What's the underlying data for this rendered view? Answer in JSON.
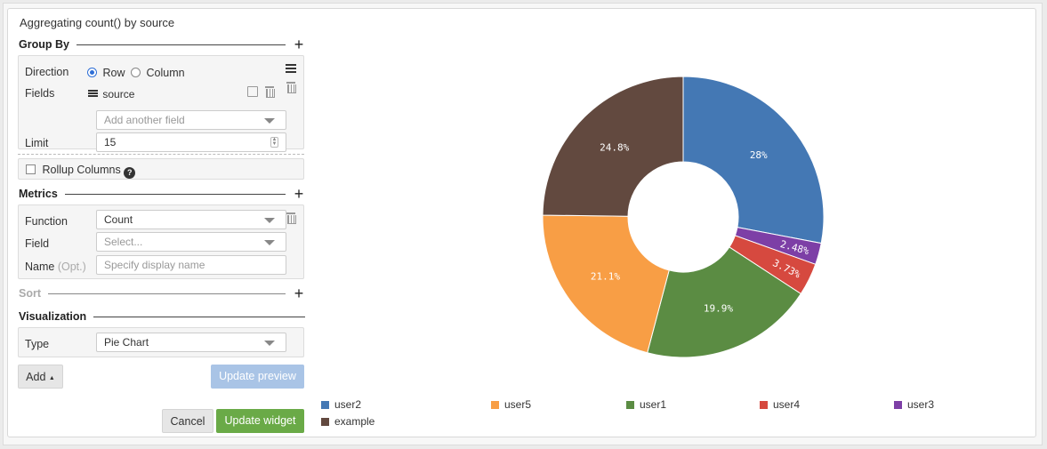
{
  "title": "Aggregating count() by source",
  "group_by": {
    "label": "Group By",
    "direction_label": "Direction",
    "direction_options": [
      "Row",
      "Column"
    ],
    "direction_selected": "Row",
    "fields_label": "Fields",
    "field_value": "source",
    "add_field_placeholder": "Add another field",
    "limit_label": "Limit",
    "limit_value": "15"
  },
  "rollup": {
    "label": "Rollup Columns",
    "help": "?"
  },
  "metrics": {
    "label": "Metrics",
    "function_label": "Function",
    "function_value": "Count",
    "field_label": "Field",
    "field_placeholder": "Select...",
    "name_label": "Name",
    "name_opt": "(Opt.)",
    "name_placeholder": "Specify display name"
  },
  "sort": {
    "label": "Sort"
  },
  "visualization": {
    "label": "Visualization",
    "type_label": "Type",
    "type_value": "Pie Chart"
  },
  "buttons": {
    "add": "Add",
    "update_preview": "Update preview",
    "cancel": "Cancel",
    "update_widget": "Update widget"
  },
  "chart_data": {
    "type": "pie",
    "donut": true,
    "series": [
      {
        "name": "user2",
        "value": 28,
        "label": "28%",
        "color": "#4478b4"
      },
      {
        "name": "user3",
        "value": 2.48,
        "label": "2.48%",
        "color": "#7d3fa6"
      },
      {
        "name": "user4",
        "value": 3.73,
        "label": "3.73%",
        "color": "#d6493f"
      },
      {
        "name": "user1",
        "value": 19.9,
        "label": "19.9%",
        "color": "#5b8c43"
      },
      {
        "name": "user5",
        "value": 21.1,
        "label": "21.1%",
        "color": "#f89e45"
      },
      {
        "name": "example",
        "value": 24.8,
        "label": "24.8%",
        "color": "#62493f"
      }
    ],
    "legend": [
      "user2",
      "user5",
      "user1",
      "user4",
      "user3",
      "example"
    ],
    "legend_placement": "bottom"
  }
}
